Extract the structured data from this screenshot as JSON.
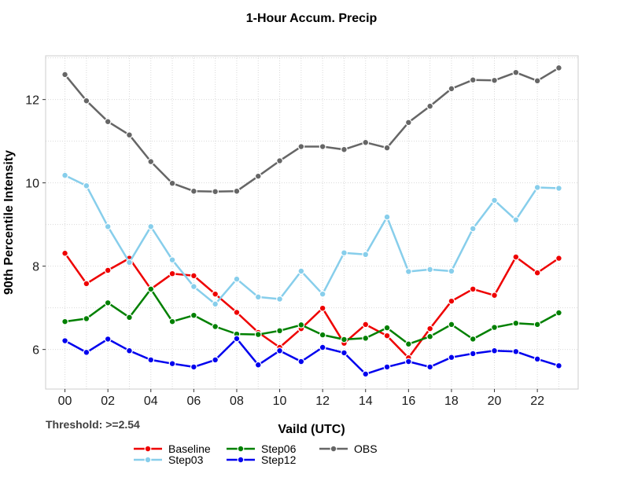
{
  "chart_data": {
    "type": "line",
    "title": "1-Hour Accum. Precip",
    "xlabel": "Vaild (UTC)",
    "ylabel": "90th Percentile Intensity",
    "annotation": "Threshold: >=2.54",
    "x": [
      0,
      1,
      2,
      3,
      4,
      5,
      6,
      7,
      8,
      9,
      10,
      11,
      12,
      13,
      14,
      15,
      16,
      17,
      18,
      19,
      20,
      21,
      22,
      23
    ],
    "x_tick_labels": [
      "00",
      "02",
      "04",
      "06",
      "08",
      "10",
      "12",
      "14",
      "16",
      "18",
      "20",
      "22"
    ],
    "y_ticks": [
      6,
      8,
      10,
      12
    ],
    "xlim": [
      -0.9,
      23.9
    ],
    "ylim": [
      5.05,
      13.05
    ],
    "grid": true,
    "legend_position": "bottom",
    "series": [
      {
        "name": "Baseline",
        "color": "#ee0000",
        "values": [
          8.31,
          7.58,
          7.9,
          8.19,
          7.45,
          7.82,
          7.77,
          7.33,
          6.89,
          6.41,
          6.05,
          6.5,
          6.99,
          6.15,
          6.6,
          6.33,
          5.8,
          6.5,
          7.16,
          7.45,
          7.3,
          8.22,
          7.84,
          8.19
        ]
      },
      {
        "name": "Step03",
        "color": "#87ceeb",
        "values": [
          10.18,
          9.93,
          8.95,
          8.09,
          8.95,
          8.15,
          7.51,
          7.09,
          7.69,
          7.26,
          7.21,
          7.88,
          7.33,
          8.32,
          8.28,
          9.18,
          7.87,
          7.92,
          7.88,
          8.9,
          9.58,
          9.11,
          9.89,
          9.87
        ]
      },
      {
        "name": "Step06",
        "color": "#008000",
        "values": [
          6.67,
          6.74,
          7.12,
          6.77,
          7.45,
          6.67,
          6.82,
          6.55,
          6.37,
          6.36,
          6.45,
          6.59,
          6.35,
          6.24,
          6.27,
          6.52,
          6.13,
          6.31,
          6.6,
          6.25,
          6.53,
          6.63,
          6.6,
          6.88
        ]
      },
      {
        "name": "Step12",
        "color": "#0000ee",
        "values": [
          6.21,
          5.93,
          6.25,
          5.97,
          5.75,
          5.66,
          5.58,
          5.75,
          6.26,
          5.63,
          5.97,
          5.71,
          6.05,
          5.92,
          5.41,
          5.58,
          5.71,
          5.58,
          5.81,
          5.9,
          5.97,
          5.95,
          5.77,
          5.61
        ]
      },
      {
        "name": "OBS",
        "color": "#666666",
        "values": [
          12.6,
          11.97,
          11.47,
          11.15,
          10.51,
          9.99,
          9.8,
          9.79,
          9.8,
          10.16,
          10.53,
          10.87,
          10.87,
          10.8,
          10.97,
          10.84,
          11.45,
          11.84,
          12.26,
          12.47,
          12.46,
          12.65,
          12.45,
          12.76
        ]
      }
    ]
  }
}
